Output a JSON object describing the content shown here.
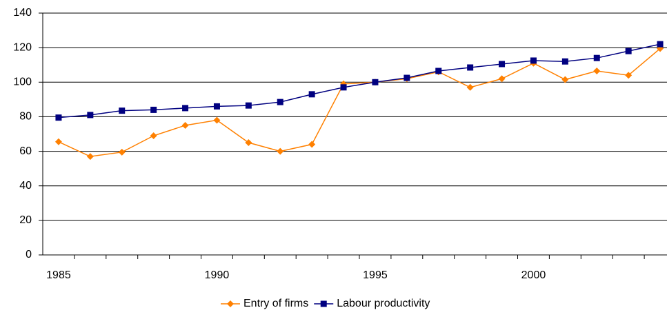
{
  "chart_data": {
    "type": "line",
    "x": [
      1985,
      1986,
      1987,
      1988,
      1989,
      1990,
      1991,
      1992,
      1993,
      1994,
      1995,
      1996,
      1997,
      1998,
      1999,
      2000,
      2001,
      2002,
      2003,
      2004
    ],
    "series": [
      {
        "name": "Entry of firms",
        "color": "#ff8000",
        "marker": "diamond",
        "values": [
          65.5,
          57,
          59.5,
          69,
          75,
          78,
          65,
          60,
          64,
          99,
          100,
          102,
          106,
          97,
          102,
          111,
          101.5,
          106.5,
          104,
          119.5
        ]
      },
      {
        "name": "Labour productivity",
        "color": "#000080",
        "marker": "square",
        "values": [
          79.5,
          81,
          83.5,
          84,
          85,
          86,
          86.5,
          88.5,
          93,
          97,
          100,
          102.5,
          106.5,
          108.5,
          110.5,
          112.5,
          112,
          114,
          118,
          122
        ]
      }
    ],
    "xlim": [
      1984.5,
      2004.5
    ],
    "xticks": [
      1985,
      1990,
      1995,
      2000
    ],
    "ylim": [
      0,
      140
    ],
    "yticks": [
      0,
      20,
      40,
      60,
      80,
      100,
      120,
      140
    ],
    "grid": true,
    "legend": "bottom"
  }
}
